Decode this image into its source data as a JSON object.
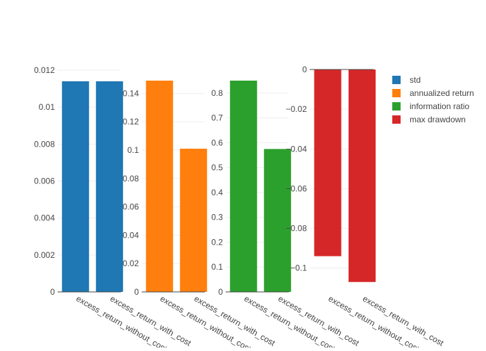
{
  "chart_data": {
    "type": "bar",
    "legend": {
      "position": "right",
      "items": [
        {
          "name": "std",
          "color": "#1f77b4"
        },
        {
          "name": "annualized return",
          "color": "#ff7f0e"
        },
        {
          "name": "information ratio",
          "color": "#2ca02c"
        },
        {
          "name": "max drawdown",
          "color": "#d62728"
        }
      ]
    },
    "subplots": [
      {
        "series": "std",
        "color": "#1f77b4",
        "categories": [
          "excess_return_without_cost",
          "excess_return_with_cost"
        ],
        "values": [
          0.0114,
          0.0114
        ],
        "ylim": [
          0,
          0.012
        ],
        "yticks": [
          0,
          0.002,
          0.004,
          0.006,
          0.008,
          0.01,
          0.012
        ],
        "ytick_labels": [
          "0",
          "0.002",
          "0.004",
          "0.006",
          "0.008",
          "0.01",
          "0.012"
        ],
        "grid": true
      },
      {
        "series": "annualized return",
        "color": "#ff7f0e",
        "categories": [
          "excess_return_without_cost",
          "excess_return_with_cost"
        ],
        "values": [
          0.149,
          0.101
        ],
        "ylim": [
          0,
          0.149
        ],
        "yticks": [
          0,
          0.02,
          0.04,
          0.06,
          0.08,
          0.1,
          0.12,
          0.14
        ],
        "ytick_labels": [
          "0",
          "0.02",
          "0.04",
          "0.06",
          "0.08",
          "0.1",
          "0.12",
          "0.14"
        ],
        "grid": true
      },
      {
        "series": "information ratio",
        "color": "#2ca02c",
        "categories": [
          "excess_return_without_cost",
          "excess_return_with_cost"
        ],
        "values": [
          0.85,
          0.575
        ],
        "ylim": [
          0,
          0.85
        ],
        "yticks": [
          0,
          0.1,
          0.2,
          0.3,
          0.4,
          0.5,
          0.6,
          0.7,
          0.8
        ],
        "ytick_labels": [
          "0",
          "0.1",
          "0.2",
          "0.3",
          "0.4",
          "0.5",
          "0.6",
          "0.7",
          "0.8"
        ],
        "grid": true
      },
      {
        "series": "max drawdown",
        "color": "#d62728",
        "categories": [
          "excess_return_without_cost",
          "excess_return_with_cost"
        ],
        "values": [
          -0.094,
          -0.107
        ],
        "ylim": [
          -0.112,
          0
        ],
        "yticks": [
          0,
          -0.02,
          -0.04,
          -0.06,
          -0.08,
          -0.1
        ],
        "ytick_labels": [
          "0",
          "−0.02",
          "−0.04",
          "−0.06",
          "−0.08",
          "−0.1"
        ],
        "grid": true
      }
    ]
  }
}
